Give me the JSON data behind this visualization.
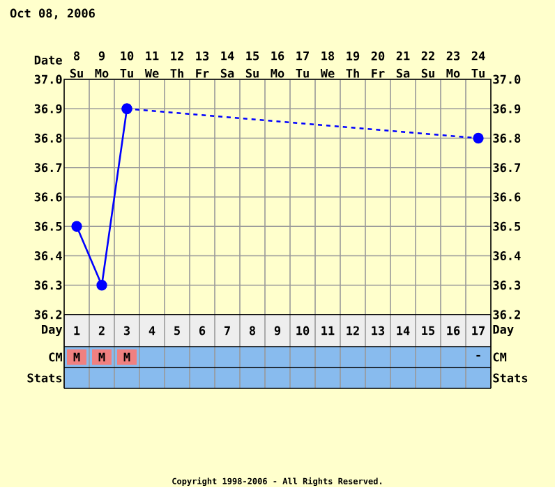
{
  "chart_data": {
    "type": "line",
    "title": "Oct 08, 2006",
    "xlabel": "Day",
    "x2label": "Date",
    "xlim": [
      0.5,
      17.5
    ],
    "xticks": [
      {
        "value": 1,
        "label": "1"
      },
      {
        "value": 2,
        "label": "2"
      },
      {
        "value": 3,
        "label": "3"
      },
      {
        "value": 4,
        "label": "4"
      },
      {
        "value": 5,
        "label": "5"
      },
      {
        "value": 6,
        "label": "6"
      },
      {
        "value": 7,
        "label": "7"
      },
      {
        "value": 8,
        "label": "8"
      },
      {
        "value": 9,
        "label": "9"
      },
      {
        "value": 10,
        "label": "10"
      },
      {
        "value": 11,
        "label": "11"
      },
      {
        "value": 12,
        "label": "12"
      },
      {
        "value": 13,
        "label": "13"
      },
      {
        "value": 14,
        "label": "14"
      },
      {
        "value": 15,
        "label": "15"
      },
      {
        "value": 16,
        "label": "16"
      },
      {
        "value": 17,
        "label": "17"
      }
    ],
    "x2lim": [
      "2006-10-07T12:00",
      "2006-10-24T12:00"
    ],
    "x2ticks": [
      {
        "value": "2006-10-08",
        "label": "8 Su"
      },
      {
        "value": "2006-10-09",
        "label": "9 Mo"
      },
      {
        "value": "2006-10-10",
        "label": "10 Tu"
      },
      {
        "value": "2006-10-11",
        "label": "11 We"
      },
      {
        "value": "2006-10-12",
        "label": "12 Th"
      },
      {
        "value": "2006-10-13",
        "label": "13 Fr"
      },
      {
        "value": "2006-10-14",
        "label": "14 Sa"
      },
      {
        "value": "2006-10-15",
        "label": "15 Su"
      },
      {
        "value": "2006-10-16",
        "label": "16 Mo"
      },
      {
        "value": "2006-10-17",
        "label": "17 Tu"
      },
      {
        "value": "2006-10-18",
        "label": "18 We"
      },
      {
        "value": "2006-10-19",
        "label": "19 Th"
      },
      {
        "value": "2006-10-20",
        "label": "20 Fr"
      },
      {
        "value": "2006-10-21",
        "label": "21 Sa"
      },
      {
        "value": "2006-10-22",
        "label": "22 Su"
      },
      {
        "value": "2006-10-23",
        "label": "23 Mo"
      },
      {
        "value": "2006-10-24",
        "label": "24 Tu"
      }
    ],
    "ylim": [
      36.2,
      37.0
    ],
    "yticks": [
      {
        "value": 36.2,
        "label": "36.2"
      },
      {
        "value": 36.3,
        "label": "36.3"
      },
      {
        "value": 36.4,
        "label": "36.4"
      },
      {
        "value": 36.5,
        "label": "36.5"
      },
      {
        "value": 36.6,
        "label": "36.6"
      },
      {
        "value": 36.7,
        "label": "36.7"
      },
      {
        "value": 36.8,
        "label": "36.8"
      },
      {
        "value": 36.9,
        "label": "36.9"
      },
      {
        "value": 37.0,
        "label": "37.0"
      }
    ],
    "y2lim": [
      36.2,
      37.0
    ],
    "y2ticks": [
      {
        "value": 36.2,
        "label": "36.2"
      },
      {
        "value": 36.3,
        "label": "36.3"
      },
      {
        "value": 36.4,
        "label": "36.4"
      },
      {
        "value": 36.5,
        "label": "36.5"
      },
      {
        "value": 36.6,
        "label": "36.6"
      },
      {
        "value": 36.7,
        "label": "36.7"
      },
      {
        "value": 36.8,
        "label": "36.8"
      },
      {
        "value": 36.9,
        "label": "36.9"
      },
      {
        "value": 37.0,
        "label": "37.0"
      }
    ],
    "grid": true,
    "marker": "circle",
    "series": [
      {
        "color": "#0000ff",
        "line_style": "solid",
        "x": [
          1,
          2,
          3
        ],
        "values": [
          36.5,
          36.3,
          36.9
        ]
      },
      {
        "color": "#0000ff",
        "line_style": "dashed",
        "x": [
          3,
          17
        ],
        "values": [
          36.9,
          36.8
        ]
      }
    ],
    "annotations": [
      "CM",
      "Stats",
      "M",
      "M",
      "M",
      "-",
      "Copyright 1998-2006 - All Rights Reserved."
    ]
  }
}
